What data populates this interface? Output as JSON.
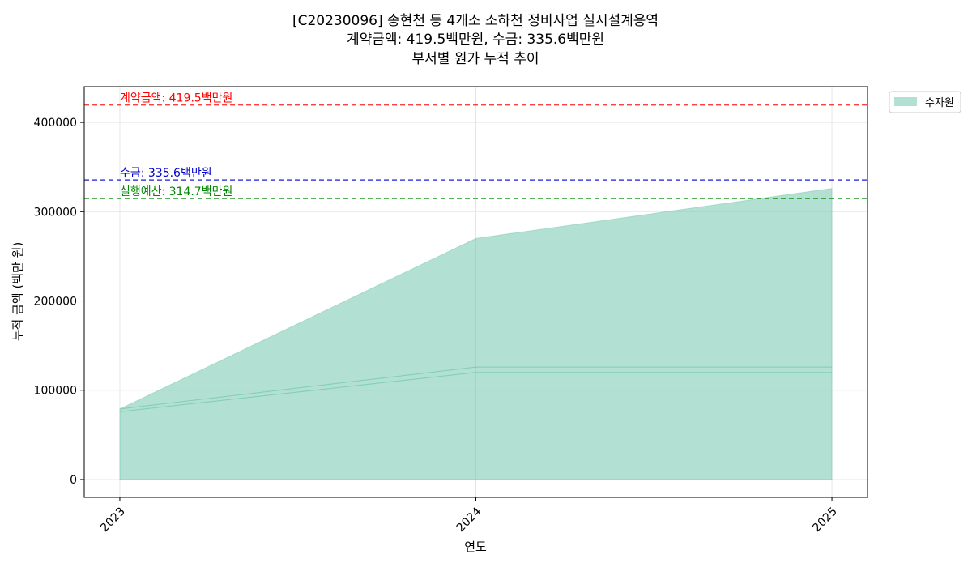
{
  "chart_data": {
    "type": "area",
    "title_lines": [
      "[C20230096] 송현천 등 4개소 소하천 정비사업 실시설계용역",
      "계약금액: 419.5백만원, 수금: 335.6백만원",
      "부서별 원가 누적 추이"
    ],
    "xlabel": "연도",
    "ylabel": "누적 금액 (백만 원)",
    "x": [
      "2023",
      "2024",
      "2025"
    ],
    "xlim": [
      2022.9,
      2025.1
    ],
    "ylim": [
      -20000,
      440000
    ],
    "yticks": [
      0,
      100000,
      200000,
      300000,
      400000
    ],
    "grid": true,
    "legend_position": "outside-top-right",
    "series": [
      {
        "name": "수자원",
        "color": "#66c2a5",
        "opacity": 0.5,
        "stack": [
          [
            0,
            0,
            0
          ],
          [
            76000,
            120000,
            120000
          ],
          [
            79000,
            126000,
            126000
          ],
          [
            79000,
            270000,
            326000
          ]
        ]
      }
    ],
    "reference_lines": [
      {
        "label": "계약금액: 419.5백만원",
        "value": 419500,
        "color": "#ff0000"
      },
      {
        "label": "수금: 335.6백만원",
        "value": 335600,
        "color": "#0000cc"
      },
      {
        "label": "실행예산: 314.7백만원",
        "value": 314700,
        "color": "#008800"
      }
    ]
  }
}
